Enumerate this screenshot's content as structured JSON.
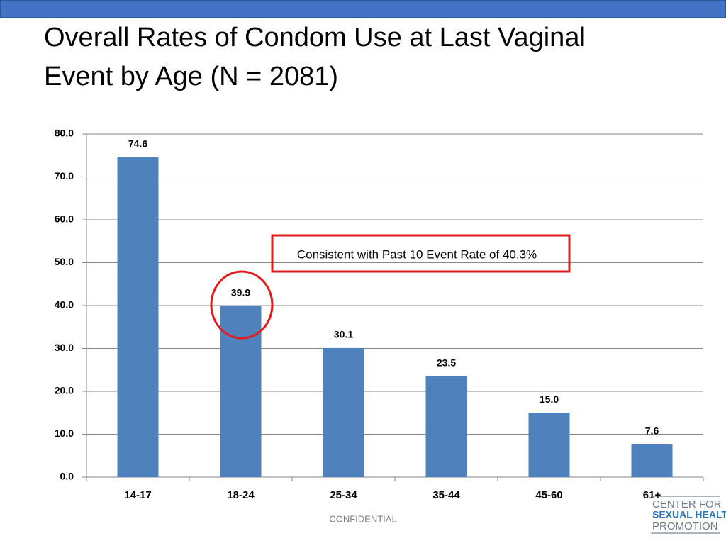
{
  "chart_data": {
    "type": "bar",
    "title": "Overall Rates of Condom Use at Last Vaginal Event by Age (N = 2081)",
    "categories": [
      "14-17",
      "18-24",
      "25-34",
      "35-44",
      "45-60",
      "61+"
    ],
    "values": [
      74.6,
      39.9,
      30.1,
      23.5,
      15.0,
      7.6
    ],
    "value_labels": [
      "74.6",
      "39.9",
      "30.1",
      "23.5",
      "15.0",
      "7.6"
    ],
    "color": "#4f81bd",
    "ylim": [
      0,
      80
    ],
    "yticks": [
      {
        "value": 0,
        "label": "0.0"
      },
      {
        "value": 10,
        "label": "10.0"
      },
      {
        "value": 20,
        "label": "20.0"
      },
      {
        "value": 30,
        "label": "30.0"
      },
      {
        "value": 40,
        "label": "40.0"
      },
      {
        "value": 50,
        "label": "50.0"
      },
      {
        "value": 60,
        "label": "60.0"
      },
      {
        "value": 70,
        "label": "70.0"
      },
      {
        "value": 80,
        "label": "80.0"
      }
    ],
    "grid": true,
    "annotation": "Consistent with Past 10 Event Rate of 40.3%"
  },
  "footer": "CONFIDENTIAL",
  "logo": {
    "line1": "CENTER FOR",
    "line2": "SEXUAL HEALTH",
    "line3": "PROMOTION"
  }
}
